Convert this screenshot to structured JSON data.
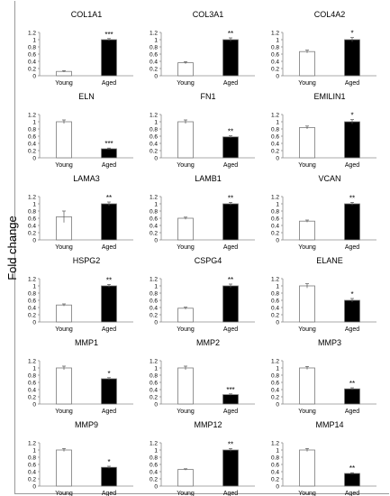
{
  "figure": {
    "ylabel": "Fold change"
  },
  "chart_data": [
    {
      "type": "bar",
      "title": "COL1A1",
      "categories": [
        "Young",
        "Aged"
      ],
      "values": [
        0.12,
        1.0
      ],
      "errors": [
        0.02,
        0.03
      ],
      "significance": "***",
      "ylim": [
        0,
        1.2
      ],
      "yticks": [
        "0",
        "0.2",
        "0.4",
        "0.6",
        "0.8",
        "1",
        "1.2"
      ],
      "colors": [
        "#ffffff",
        "#000000"
      ]
    },
    {
      "type": "bar",
      "title": "COL3A1",
      "categories": [
        "Young",
        "Aged"
      ],
      "values": [
        0.36,
        1.0
      ],
      "errors": [
        0.03,
        0.05
      ],
      "significance": "**",
      "ylim": [
        0,
        1.2
      ],
      "yticks": [
        "0",
        "0.2",
        "0.4",
        "0.6",
        "0.8",
        "1",
        "1.2"
      ],
      "colors": [
        "#ffffff",
        "#000000"
      ]
    },
    {
      "type": "bar",
      "title": "COL4A2",
      "categories": [
        "Young",
        "Aged"
      ],
      "values": [
        0.67,
        1.0
      ],
      "errors": [
        0.04,
        0.06
      ],
      "significance": "*",
      "ylim": [
        0,
        1.2
      ],
      "yticks": [
        "0",
        "0.2",
        "0.4",
        "0.6",
        "0.8",
        "1",
        "1.2"
      ],
      "colors": [
        "#ffffff",
        "#000000"
      ]
    },
    {
      "type": "bar",
      "title": "ELN",
      "categories": [
        "Young",
        "Aged"
      ],
      "values": [
        1.0,
        0.25
      ],
      "errors": [
        0.05,
        0.02
      ],
      "significance": "***",
      "ylim": [
        0,
        1.2
      ],
      "yticks": [
        "0",
        "0.2",
        "0.4",
        "0.6",
        "0.8",
        "1",
        "1.2"
      ],
      "colors": [
        "#ffffff",
        "#000000"
      ]
    },
    {
      "type": "bar",
      "title": "FN1",
      "categories": [
        "Young",
        "Aged"
      ],
      "values": [
        1.0,
        0.58
      ],
      "errors": [
        0.05,
        0.03
      ],
      "significance": "**",
      "ylim": [
        0,
        1.2
      ],
      "yticks": [
        "0",
        "0.2",
        "0.4",
        "0.6",
        "0.8",
        "1",
        "1.2"
      ],
      "colors": [
        "#ffffff",
        "#000000"
      ]
    },
    {
      "type": "bar",
      "title": "EMILIN1",
      "categories": [
        "Young",
        "Aged"
      ],
      "values": [
        0.84,
        1.0
      ],
      "errors": [
        0.04,
        0.06
      ],
      "significance": "*",
      "ylim": [
        0,
        1.2
      ],
      "yticks": [
        "0",
        "0.2",
        "0.4",
        "0.6",
        "0.8",
        "1",
        "1.2"
      ],
      "colors": [
        "#ffffff",
        "#000000"
      ]
    },
    {
      "type": "bar",
      "title": "LAMA3",
      "categories": [
        "Young",
        "Aged"
      ],
      "values": [
        0.64,
        1.0
      ],
      "errors": [
        0.16,
        0.05
      ],
      "significance": "**",
      "ylim": [
        0,
        1.2
      ],
      "yticks": [
        "0",
        "0.2",
        "0.4",
        "0.6",
        "0.8",
        "1",
        "1.2"
      ],
      "colors": [
        "#ffffff",
        "#000000"
      ]
    },
    {
      "type": "bar",
      "title": "LAMB1",
      "categories": [
        "Young",
        "Aged"
      ],
      "values": [
        0.6,
        1.0
      ],
      "errors": [
        0.03,
        0.04
      ],
      "significance": "**",
      "ylim": [
        0,
        1.2
      ],
      "yticks": [
        "0",
        "0.2",
        "0.4",
        "0.6",
        "0.8",
        "1",
        "1.2"
      ],
      "colors": [
        "#ffffff",
        "#000000"
      ]
    },
    {
      "type": "bar",
      "title": "VCAN",
      "categories": [
        "Young",
        "Aged"
      ],
      "values": [
        0.52,
        1.0
      ],
      "errors": [
        0.03,
        0.04
      ],
      "significance": "**",
      "ylim": [
        0,
        1.2
      ],
      "yticks": [
        "0",
        "0.2",
        "0.4",
        "0.6",
        "0.8",
        "1",
        "1.2"
      ],
      "colors": [
        "#ffffff",
        "#000000"
      ]
    },
    {
      "type": "bar",
      "title": "HSPG2",
      "categories": [
        "Young",
        "Aged"
      ],
      "values": [
        0.47,
        1.0
      ],
      "errors": [
        0.03,
        0.04
      ],
      "significance": "**",
      "ylim": [
        0,
        1.2
      ],
      "yticks": [
        "0",
        "0.2",
        "0.4",
        "0.6",
        "0.8",
        "1",
        "1.2"
      ],
      "colors": [
        "#ffffff",
        "#000000"
      ]
    },
    {
      "type": "bar",
      "title": "CSPG4",
      "categories": [
        "Young",
        "Aged"
      ],
      "values": [
        0.38,
        1.0
      ],
      "errors": [
        0.03,
        0.05
      ],
      "significance": "**",
      "ylim": [
        0,
        1.2
      ],
      "yticks": [
        "0",
        "0.2",
        "0.4",
        "0.6",
        "0.8",
        "1",
        "1.2"
      ],
      "colors": [
        "#ffffff",
        "#000000"
      ]
    },
    {
      "type": "bar",
      "title": "ELANE",
      "categories": [
        "Young",
        "Aged"
      ],
      "values": [
        1.0,
        0.6
      ],
      "errors": [
        0.06,
        0.05
      ],
      "significance": "*",
      "ylim": [
        0,
        1.2
      ],
      "yticks": [
        "0",
        "0.2",
        "0.4",
        "0.6",
        "0.8",
        "1",
        "1.2"
      ],
      "colors": [
        "#ffffff",
        "#000000"
      ]
    },
    {
      "type": "bar",
      "title": "MMP1",
      "categories": [
        "Young",
        "Aged"
      ],
      "values": [
        1.0,
        0.7
      ],
      "errors": [
        0.05,
        0.03
      ],
      "significance": "*",
      "ylim": [
        0,
        1.2
      ],
      "yticks": [
        "0",
        "0.2",
        "0.4",
        "0.6",
        "0.8",
        "1",
        "1.2"
      ],
      "colors": [
        "#ffffff",
        "#000000"
      ]
    },
    {
      "type": "bar",
      "title": "MMP2",
      "categories": [
        "Young",
        "Aged"
      ],
      "values": [
        1.0,
        0.26
      ],
      "errors": [
        0.05,
        0.02
      ],
      "significance": "***",
      "ylim": [
        0,
        1.2
      ],
      "yticks": [
        "0",
        "0.2",
        "0.4",
        "0.6",
        "0.8",
        "1",
        "1.2"
      ],
      "colors": [
        "#ffffff",
        "#000000"
      ]
    },
    {
      "type": "bar",
      "title": "MMP3",
      "categories": [
        "Young",
        "Aged"
      ],
      "values": [
        1.0,
        0.42
      ],
      "errors": [
        0.04,
        0.03
      ],
      "significance": "**",
      "ylim": [
        0,
        1.2
      ],
      "yticks": [
        "0",
        "0.2",
        "0.4",
        "0.6",
        "0.8",
        "1",
        "1.2"
      ],
      "colors": [
        "#ffffff",
        "#000000"
      ]
    },
    {
      "type": "bar",
      "title": "MMP9",
      "categories": [
        "Young",
        "Aged"
      ],
      "values": [
        1.0,
        0.52
      ],
      "errors": [
        0.04,
        0.03
      ],
      "significance": "*",
      "ylim": [
        0,
        1.2
      ],
      "yticks": [
        "0",
        "0.2",
        "0.4",
        "0.6",
        "0.8",
        "1",
        "1.2"
      ],
      "colors": [
        "#ffffff",
        "#000000"
      ]
    },
    {
      "type": "bar",
      "title": "MMP12",
      "categories": [
        "Young",
        "Aged"
      ],
      "values": [
        0.46,
        1.0
      ],
      "errors": [
        0.02,
        0.04
      ],
      "significance": "**",
      "ylim": [
        0,
        1.2
      ],
      "yticks": [
        "0",
        "0.2",
        "0.4",
        "0.6",
        "0.8",
        "1",
        "1.2"
      ],
      "colors": [
        "#ffffff",
        "#000000"
      ]
    },
    {
      "type": "bar",
      "title": "MMP14",
      "categories": [
        "Young",
        "Aged"
      ],
      "values": [
        1.0,
        0.35
      ],
      "errors": [
        0.04,
        0.02
      ],
      "significance": "**",
      "ylim": [
        0,
        1.2
      ],
      "yticks": [
        "0",
        "0.2",
        "0.4",
        "0.6",
        "0.8",
        "1",
        "1.2"
      ],
      "colors": [
        "#ffffff",
        "#000000"
      ]
    }
  ]
}
